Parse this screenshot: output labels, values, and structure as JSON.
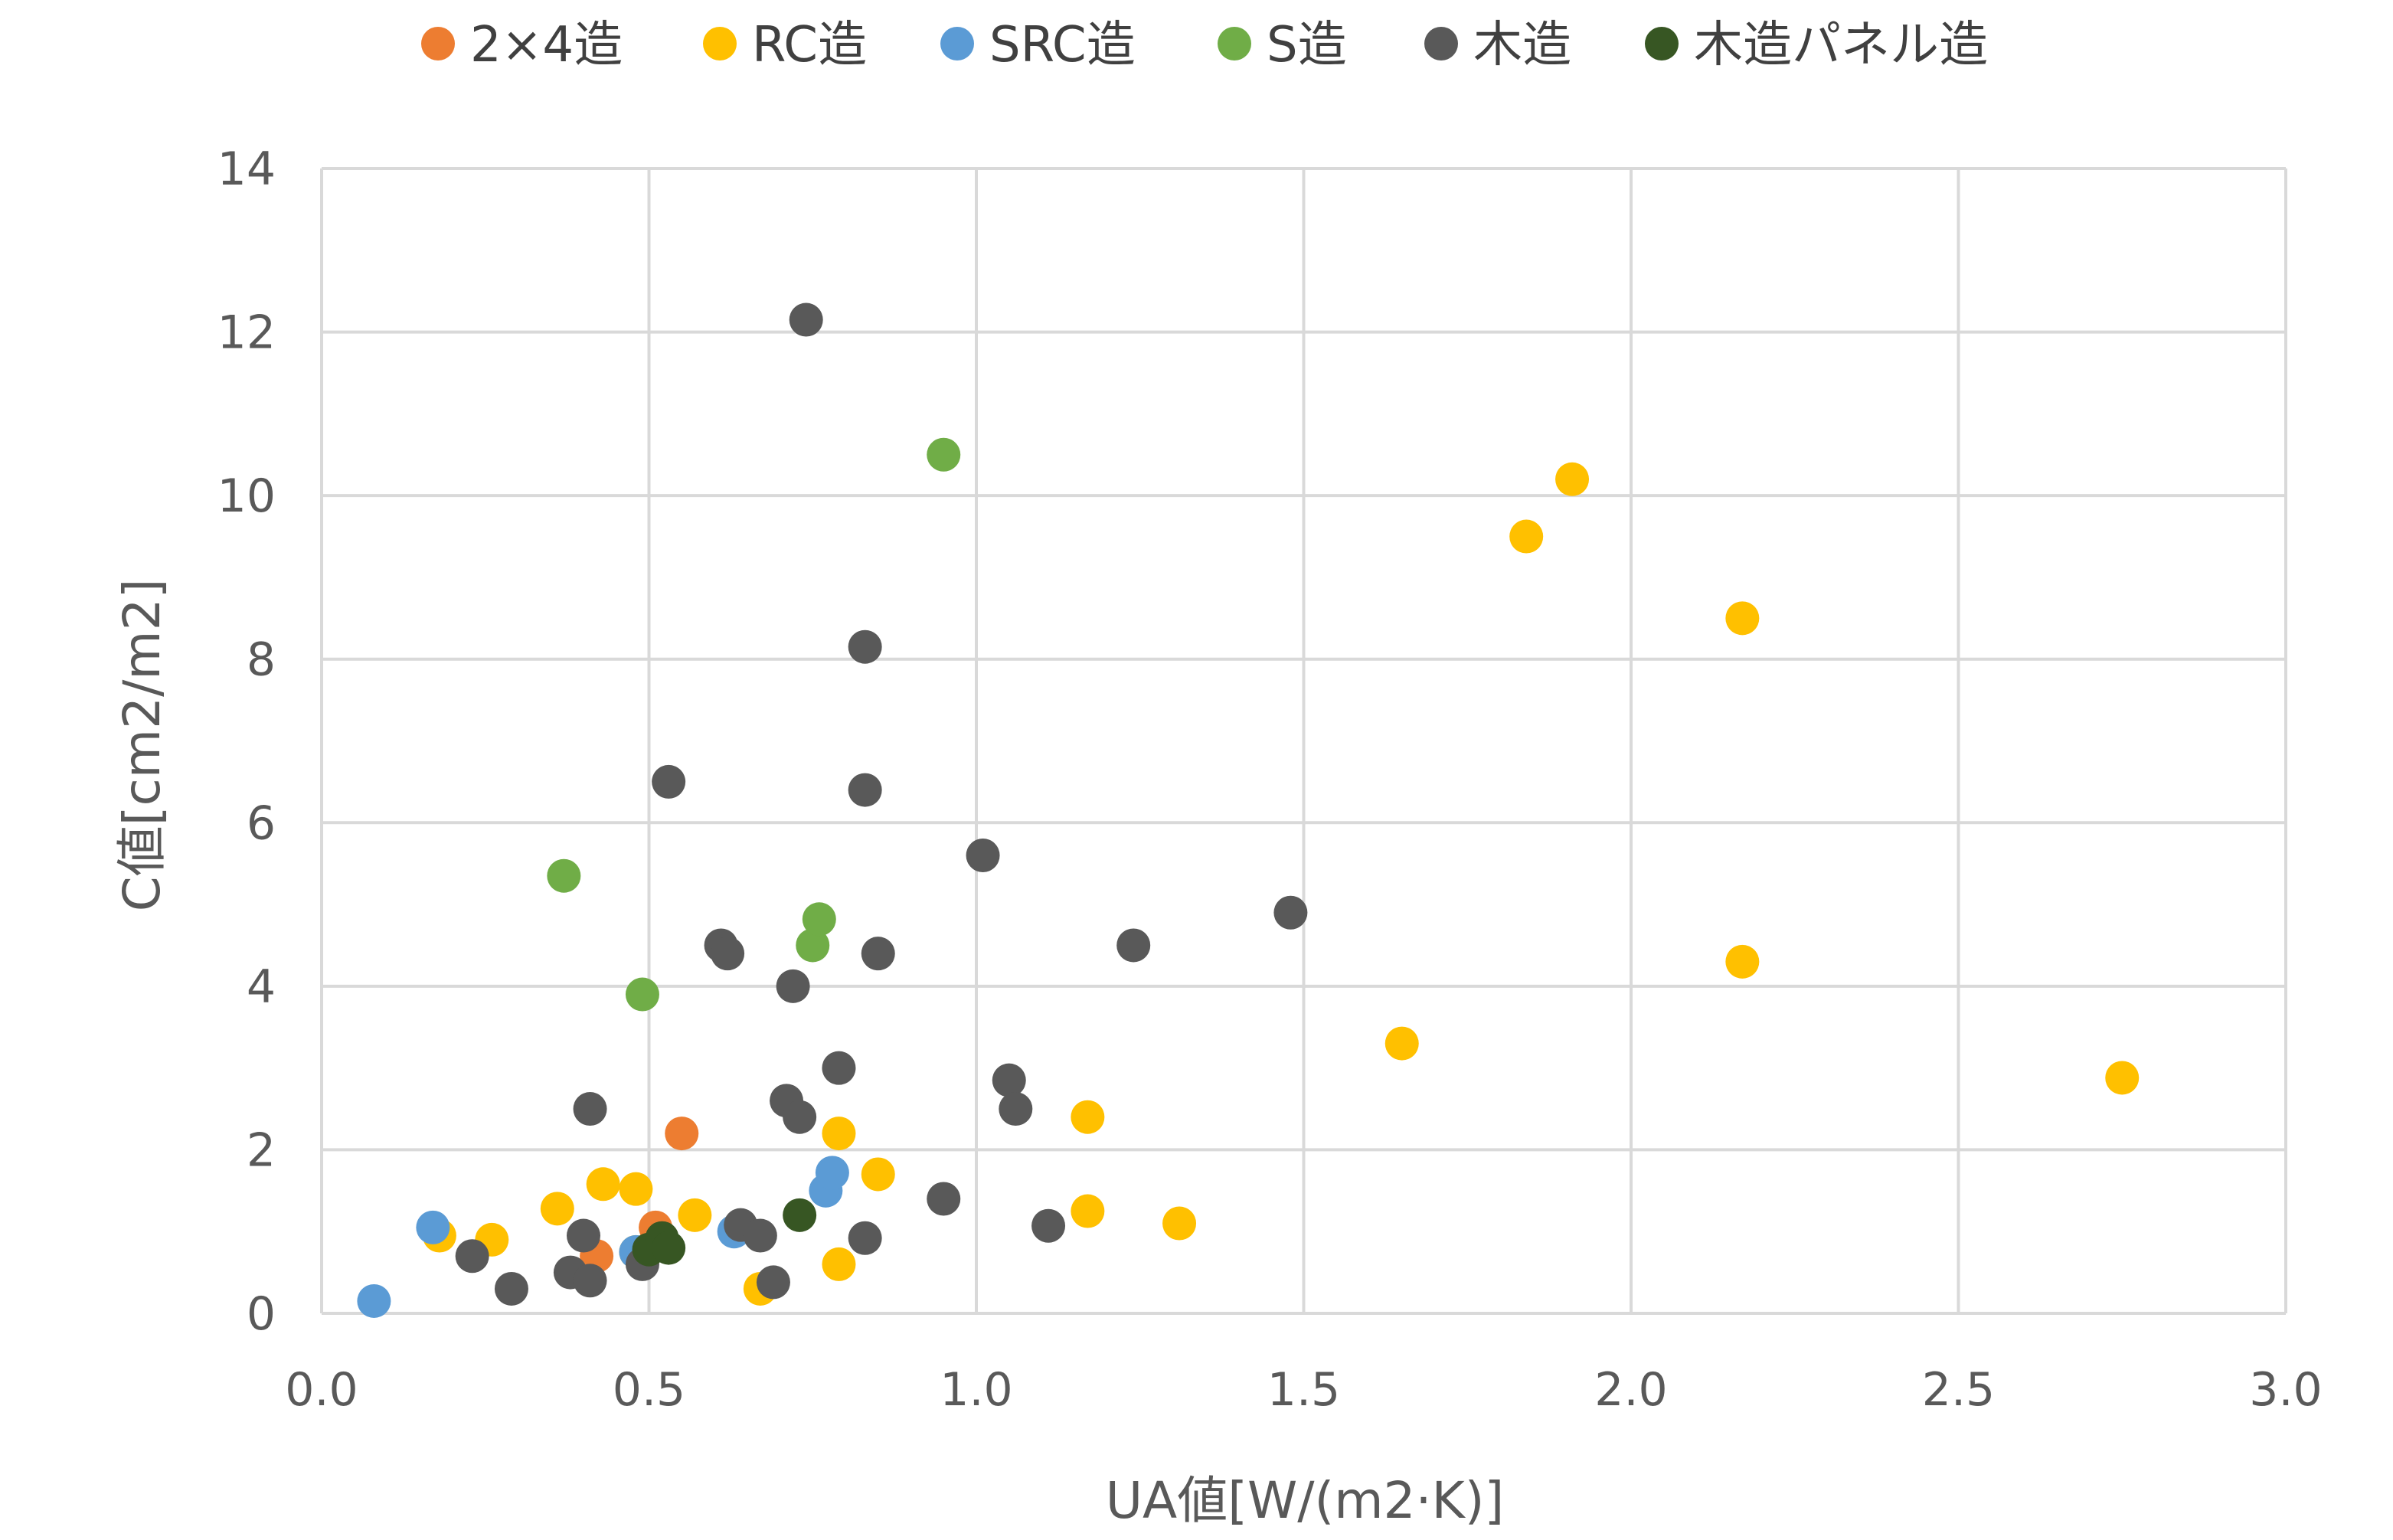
{
  "chart_data": {
    "type": "scatter",
    "xlabel": "UA値[W/(m2·K)]",
    "ylabel": "C値[cm2/m2]",
    "xlim": [
      0,
      3
    ],
    "ylim": [
      0,
      14
    ],
    "x_ticks": [
      "0.0",
      "0.5",
      "1.0",
      "1.5",
      "2.0",
      "2.5",
      "3.0"
    ],
    "y_ticks": [
      "0",
      "2",
      "4",
      "6",
      "8",
      "10",
      "12",
      "14"
    ],
    "grid": true,
    "legend_position": "top",
    "series": [
      {
        "name": "2×4造",
        "color": "#ED7D31",
        "points": [
          [
            0.51,
            1.05
          ],
          [
            0.42,
            0.7
          ],
          [
            0.55,
            2.2
          ]
        ]
      },
      {
        "name": "RC造",
        "color": "#FFC000",
        "points": [
          [
            0.18,
            0.95
          ],
          [
            0.26,
            0.9
          ],
          [
            0.36,
            1.28
          ],
          [
            0.43,
            1.58
          ],
          [
            0.48,
            1.52
          ],
          [
            0.48,
            0.75
          ],
          [
            0.57,
            1.2
          ],
          [
            0.67,
            0.3
          ],
          [
            0.79,
            2.2
          ],
          [
            0.79,
            0.6
          ],
          [
            0.85,
            1.7
          ],
          [
            1.17,
            2.4
          ],
          [
            1.17,
            1.25
          ],
          [
            1.31,
            1.1
          ],
          [
            1.65,
            3.3
          ],
          [
            1.84,
            9.5
          ],
          [
            1.91,
            10.2
          ],
          [
            2.17,
            8.5
          ],
          [
            2.17,
            4.3
          ],
          [
            2.75,
            2.88
          ]
        ]
      },
      {
        "name": "SRC造",
        "color": "#5B9BD5",
        "points": [
          [
            0.08,
            0.15
          ],
          [
            0.17,
            1.05
          ],
          [
            0.48,
            0.75
          ],
          [
            0.63,
            1.0
          ],
          [
            0.77,
            1.5
          ],
          [
            0.78,
            1.72
          ]
        ]
      },
      {
        "name": "S造",
        "color": "#70AD47",
        "points": [
          [
            0.37,
            5.35
          ],
          [
            0.49,
            3.9
          ],
          [
            0.75,
            4.5
          ],
          [
            0.76,
            4.82
          ],
          [
            0.95,
            10.5
          ]
        ]
      },
      {
        "name": "木造",
        "color": "#595959",
        "points": [
          [
            0.23,
            0.7
          ],
          [
            0.29,
            0.3
          ],
          [
            0.38,
            0.5
          ],
          [
            0.4,
            0.95
          ],
          [
            0.41,
            0.4
          ],
          [
            0.41,
            2.5
          ],
          [
            0.49,
            0.6
          ],
          [
            0.53,
            6.5
          ],
          [
            0.61,
            4.5
          ],
          [
            0.62,
            4.4
          ],
          [
            0.64,
            1.08
          ],
          [
            0.67,
            0.95
          ],
          [
            0.69,
            0.38
          ],
          [
            0.71,
            2.6
          ],
          [
            0.72,
            4.0
          ],
          [
            0.73,
            2.4
          ],
          [
            0.74,
            12.15
          ],
          [
            0.79,
            3.0
          ],
          [
            0.83,
            0.92
          ],
          [
            0.83,
            8.15
          ],
          [
            0.83,
            6.4
          ],
          [
            0.85,
            4.4
          ],
          [
            0.95,
            1.4
          ],
          [
            1.01,
            5.6
          ],
          [
            1.05,
            2.85
          ],
          [
            1.06,
            2.5
          ],
          [
            1.11,
            1.07
          ],
          [
            1.24,
            4.5
          ],
          [
            1.48,
            4.9
          ]
        ]
      },
      {
        "name": "木造パネル造",
        "color": "#375623",
        "points": [
          [
            0.5,
            0.78
          ],
          [
            0.52,
            0.92
          ],
          [
            0.53,
            0.8
          ],
          [
            0.73,
            1.2
          ]
        ]
      }
    ]
  }
}
